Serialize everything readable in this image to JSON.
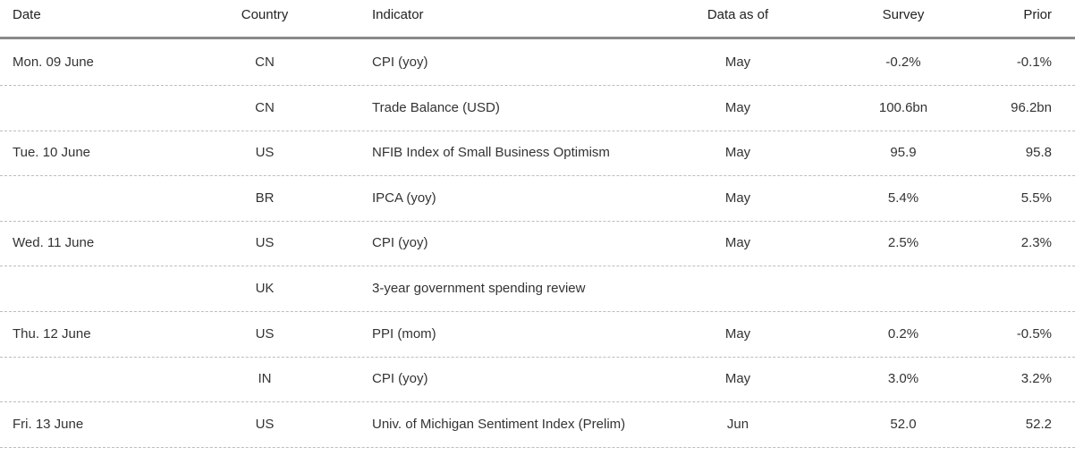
{
  "table": {
    "columns": [
      "Date",
      "Country",
      "Indicator",
      "Data as of",
      "Survey",
      "Prior"
    ],
    "rows": [
      {
        "date": "Mon. 09 June",
        "country": "CN",
        "indicator": "CPI (yoy)",
        "as_of": "May",
        "survey": "-0.2%",
        "prior": "-0.1%"
      },
      {
        "country": "CN",
        "indicator": "Trade Balance (USD)",
        "as_of": "May",
        "survey": "100.6bn",
        "prior": "96.2bn"
      },
      {
        "date": "Tue. 10 June",
        "country": "US",
        "indicator": "NFIB Index of Small Business Optimism",
        "as_of": "May",
        "survey": "95.9",
        "prior": "95.8"
      },
      {
        "country": "BR",
        "indicator": "IPCA (yoy)",
        "as_of": "May",
        "survey": "5.4%",
        "prior": "5.5%"
      },
      {
        "date": "Wed. 11 June",
        "country": "US",
        "indicator": "CPI (yoy)",
        "as_of": "May",
        "survey": "2.5%",
        "prior": "2.3%"
      },
      {
        "country": "UK",
        "indicator": "3-year government spending review"
      },
      {
        "date": "Thu. 12 June",
        "country": "US",
        "indicator": "PPI (mom)",
        "as_of": "May",
        "survey": "0.2%",
        "prior": "-0.5%"
      },
      {
        "country": "IN",
        "indicator": "CPI (yoy)",
        "as_of": "May",
        "survey": "3.0%",
        "prior": "3.2%"
      },
      {
        "date": "Fri. 13 June",
        "country": "US",
        "indicator": "Univ. of Michigan Sentiment Index (Prelim)",
        "as_of": "Jun",
        "survey": "52.0",
        "prior": "52.2"
      }
    ]
  }
}
